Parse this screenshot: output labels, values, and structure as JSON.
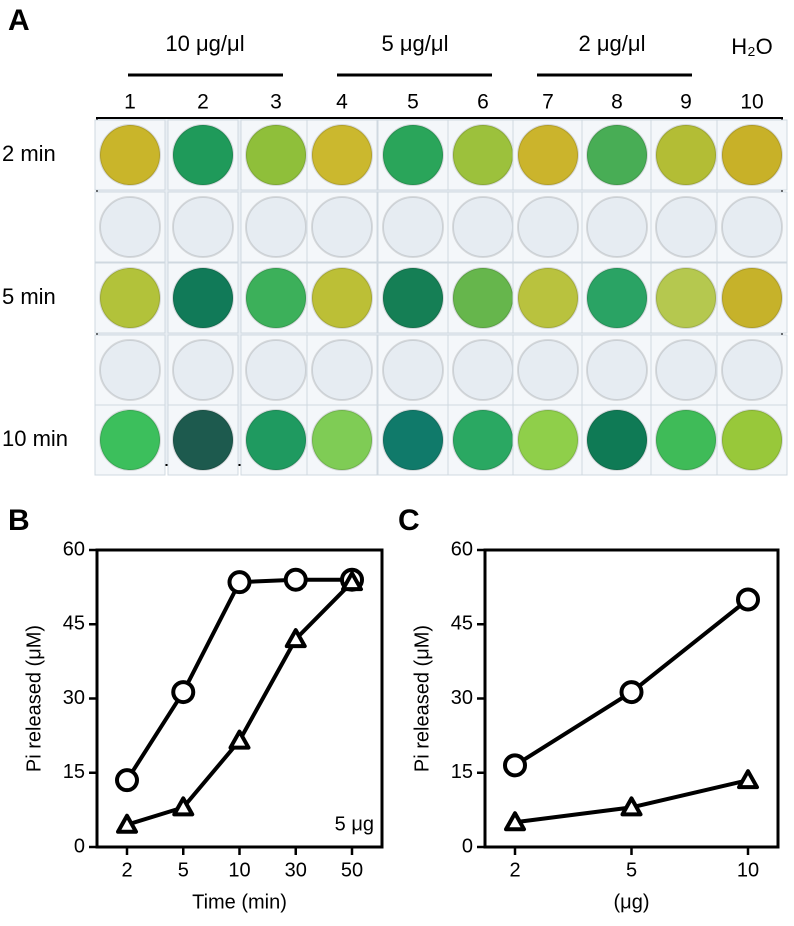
{
  "plate": {
    "panel": "A",
    "concentrations": [
      "10 μg/μl",
      "5 μg/μl",
      "2 μg/μl",
      "H₂O"
    ],
    "columns": [
      "1",
      "2",
      "3",
      "4",
      "5",
      "6",
      "7",
      "8",
      "9",
      "10"
    ],
    "rows": [
      "2 min",
      "5 min",
      "10 min"
    ]
  },
  "chart_data": [
    {
      "type": "line",
      "panel": "B",
      "y_label": "Pi released (μM)",
      "x_label": "Time (min)",
      "annotation": "5 μg",
      "categories": [
        "2",
        "5",
        "10",
        "30",
        "50"
      ],
      "ylim": [
        0,
        60
      ],
      "yticks": [
        0,
        15,
        30,
        45,
        60
      ],
      "series": [
        {
          "marker": "circle",
          "color": "#000000",
          "values": [
            13.5,
            31.3,
            53.5,
            54,
            54
          ]
        },
        {
          "marker": "triangle",
          "color": "#000000",
          "values": [
            4.5,
            8,
            21.5,
            42,
            53.5
          ]
        }
      ]
    },
    {
      "type": "line",
      "panel": "C",
      "y_label": "Pi released (μM)",
      "x_label": "(μg)",
      "categories": [
        "2",
        "5",
        "10"
      ],
      "ylim": [
        0,
        60
      ],
      "yticks": [
        0,
        15,
        30,
        45,
        60
      ],
      "series": [
        {
          "marker": "circle",
          "color": "#000000",
          "values": [
            16.5,
            31.3,
            50
          ]
        },
        {
          "marker": "triangle",
          "color": "#000000",
          "values": [
            5,
            8,
            13.5
          ]
        }
      ]
    }
  ]
}
